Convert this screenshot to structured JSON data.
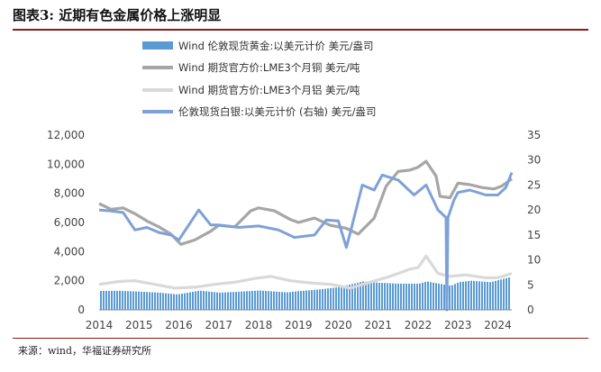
{
  "figure": {
    "title": "图表3: 近期有色金属价格上涨明显",
    "source": "来源：wind，华福证券研究所"
  },
  "colors": {
    "gold": "#5b9bd5",
    "copper": "#a6a6a6",
    "aluminum": "#d9d9d9",
    "silver": "#7ea1d8",
    "rule": "#8b1a1a"
  },
  "chart_data": {
    "type": "line",
    "title": "",
    "x_label": "",
    "y_label": "",
    "x_ticks": [
      "2014",
      "2015",
      "2016",
      "2017",
      "2018",
      "2019",
      "2020",
      "2021",
      "2022",
      "2023",
      "2024"
    ],
    "y_left_ticks": [
      "0",
      "2,000",
      "4,000",
      "6,000",
      "8,000",
      "10,000",
      "12,000"
    ],
    "y_right_ticks": [
      "0",
      "5",
      "10",
      "15",
      "20",
      "25",
      "30",
      "35"
    ],
    "y_left_range": [
      0,
      12000
    ],
    "y_right_range": [
      0,
      35
    ],
    "x_range": [
      2014,
      2024.35
    ],
    "legend_position": "top",
    "grid": false,
    "series": [
      {
        "name": "Wind 伦敦现货黄金:以美元计价 美元/盎司",
        "style": "bar",
        "axis": "left",
        "x": [
          2014.0,
          2014.5,
          2015.0,
          2015.5,
          2015.95,
          2016.5,
          2017.0,
          2017.5,
          2018.0,
          2018.7,
          2019.0,
          2019.5,
          2020.0,
          2020.6,
          2021.0,
          2021.5,
          2022.0,
          2022.2,
          2022.8,
          2023.0,
          2023.3,
          2023.8,
          2024.0,
          2024.3
        ],
        "values": [
          1300,
          1310,
          1250,
          1180,
          1060,
          1320,
          1180,
          1250,
          1330,
          1200,
          1290,
          1400,
          1560,
          1950,
          1860,
          1800,
          1800,
          1950,
          1650,
          1900,
          2000,
          1900,
          2050,
          2250
        ]
      },
      {
        "name": "Wind 期货官方价:LME3个月铜 美元/吨",
        "style": "line",
        "axis": "left",
        "x": [
          2014.0,
          2014.3,
          2014.6,
          2014.9,
          2015.2,
          2015.5,
          2015.8,
          2016.05,
          2016.4,
          2016.8,
          2017.0,
          2017.4,
          2017.8,
          2018.0,
          2018.4,
          2018.8,
          2019.0,
          2019.4,
          2019.8,
          2020.2,
          2020.5,
          2020.9,
          2021.2,
          2021.5,
          2021.8,
          2022.0,
          2022.2,
          2022.45,
          2022.55,
          2022.8,
          2023.0,
          2023.3,
          2023.6,
          2023.9,
          2024.1,
          2024.35
        ],
        "values": [
          7300,
          6900,
          7000,
          6600,
          6100,
          5700,
          5200,
          4500,
          4800,
          5400,
          5800,
          5700,
          6800,
          7000,
          6800,
          6200,
          6000,
          6300,
          5800,
          5600,
          5200,
          6300,
          8500,
          9500,
          9600,
          9800,
          10200,
          9200,
          7800,
          7700,
          8700,
          8600,
          8400,
          8300,
          8500,
          9000
        ]
      },
      {
        "name": "Wind 期货官方价:LME3个月铝 美元/吨",
        "style": "line",
        "axis": "left",
        "x": [
          2014.0,
          2014.5,
          2014.9,
          2015.3,
          2015.9,
          2016.4,
          2016.9,
          2017.4,
          2017.9,
          2018.3,
          2018.8,
          2019.3,
          2019.8,
          2020.3,
          2020.8,
          2021.3,
          2021.8,
          2022.0,
          2022.2,
          2022.5,
          2022.8,
          2023.2,
          2023.7,
          2024.0,
          2024.35
        ],
        "values": [
          1750,
          1950,
          2000,
          1800,
          1500,
          1550,
          1750,
          1900,
          2150,
          2300,
          2000,
          1850,
          1750,
          1500,
          1900,
          2300,
          2800,
          2900,
          3700,
          2500,
          2300,
          2400,
          2200,
          2200,
          2500
        ]
      },
      {
        "name": "伦敦现货白银:以美元计价 (右轴) 美元/盎司",
        "style": "line",
        "axis": "right",
        "x": [
          2014.0,
          2014.3,
          2014.6,
          2014.9,
          2015.2,
          2015.5,
          2015.8,
          2016.0,
          2016.5,
          2016.8,
          2017.0,
          2017.5,
          2018.0,
          2018.5,
          2018.9,
          2019.4,
          2019.7,
          2020.0,
          2020.2,
          2020.3,
          2020.6,
          2020.9,
          2021.1,
          2021.5,
          2021.9,
          2022.2,
          2022.5,
          2022.7,
          2022.72,
          2022.75,
          2022.9,
          2023.0,
          2023.3,
          2023.7,
          2024.0,
          2024.2,
          2024.35
        ],
        "values": [
          20,
          19.8,
          19.5,
          16,
          16.5,
          15.5,
          15,
          14,
          20,
          17,
          17,
          16.5,
          16.8,
          16,
          14.5,
          15,
          18,
          17.8,
          12.5,
          15.5,
          25,
          24,
          27,
          26,
          23,
          25,
          20,
          18.5,
          0,
          18.5,
          22,
          23.5,
          24,
          23,
          23,
          24.5,
          27.5
        ]
      }
    ]
  }
}
